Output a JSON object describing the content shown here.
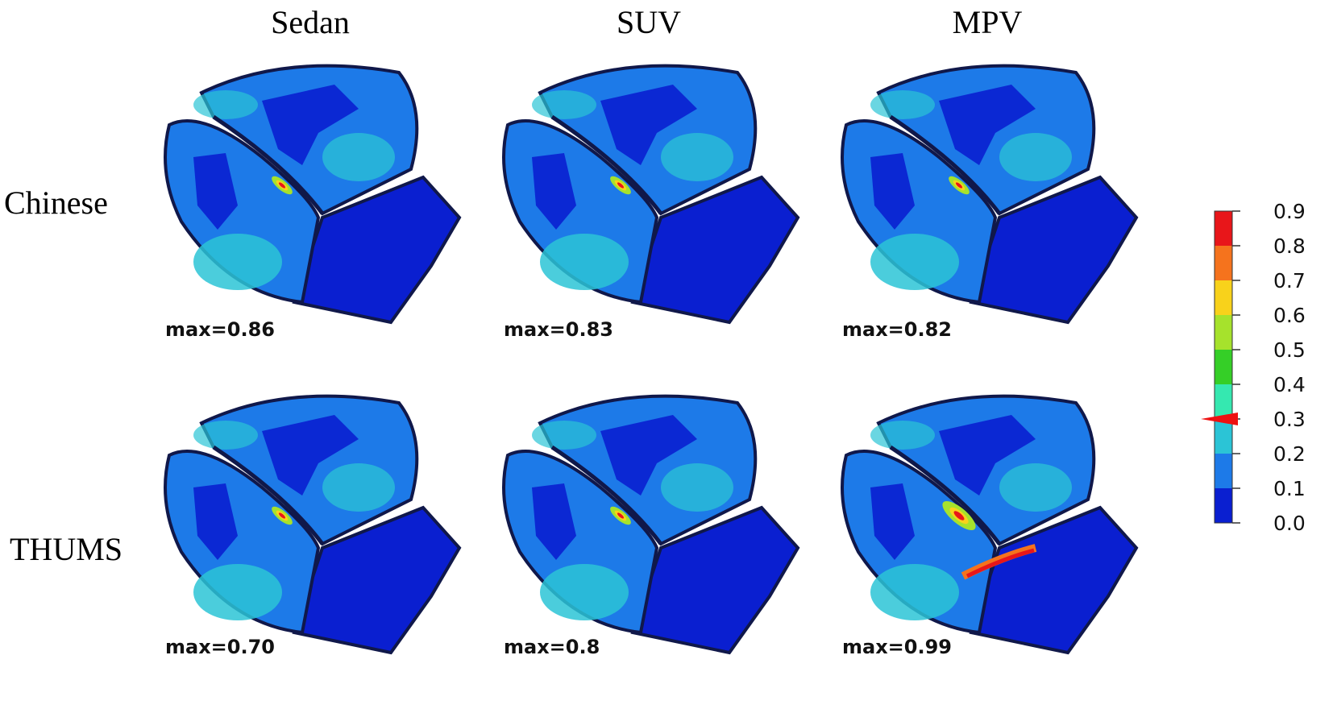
{
  "columns": [
    "Sedan",
    "SUV",
    "MPV"
  ],
  "rows": [
    "Chinese",
    "THUMS"
  ],
  "panels": [
    {
      "row": "Chinese",
      "col": "Sedan",
      "max_label": "max=0.86"
    },
    {
      "row": "Chinese",
      "col": "SUV",
      "max_label": "max=0.83"
    },
    {
      "row": "Chinese",
      "col": "MPV",
      "max_label": "max=0.82"
    },
    {
      "row": "THUMS",
      "col": "Sedan",
      "max_label": "max=0.70"
    },
    {
      "row": "THUMS",
      "col": "SUV",
      "max_label": "max=0.8"
    },
    {
      "row": "THUMS",
      "col": "MPV",
      "max_label": "max=0.99"
    }
  ],
  "colorbar": {
    "ticks": [
      "0.9",
      "0.8",
      "0.7",
      "0.6",
      "0.5",
      "0.4",
      "0.3",
      "0.2",
      "0.1",
      "0.0"
    ],
    "colors": [
      "#e8161a",
      "#f5731d",
      "#f8d21b",
      "#a6e22c",
      "#35cf27",
      "#35e8b0",
      "#2bc4d6",
      "#1d7ae8",
      "#0a1fd0"
    ],
    "marker_value": 0.3,
    "marker_color": "#ee1111"
  }
}
